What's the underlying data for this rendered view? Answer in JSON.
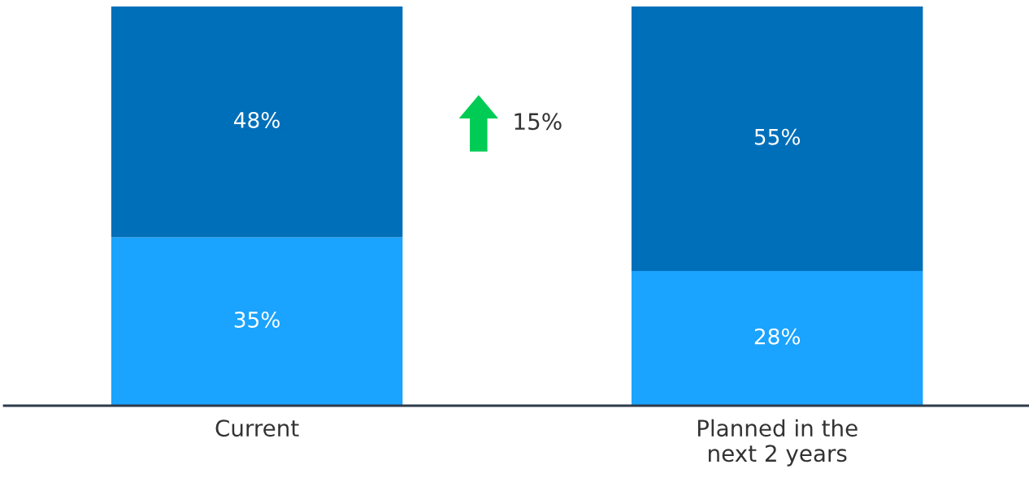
{
  "chart_data": {
    "type": "bar",
    "stacked": true,
    "categories": [
      "Current",
      "Planned in the\nnext 2 years"
    ],
    "series": [
      {
        "color": "#1aa3ff",
        "values": [
          35,
          28
        ],
        "value_labels": [
          "35%",
          "28%"
        ]
      },
      {
        "color": "#006fba",
        "values": [
          48,
          55
        ],
        "value_labels": [
          "48%",
          "55%"
        ]
      }
    ],
    "tick_labels": "x",
    "grid": false,
    "legend": false,
    "annotations": [
      "15%"
    ]
  }
}
